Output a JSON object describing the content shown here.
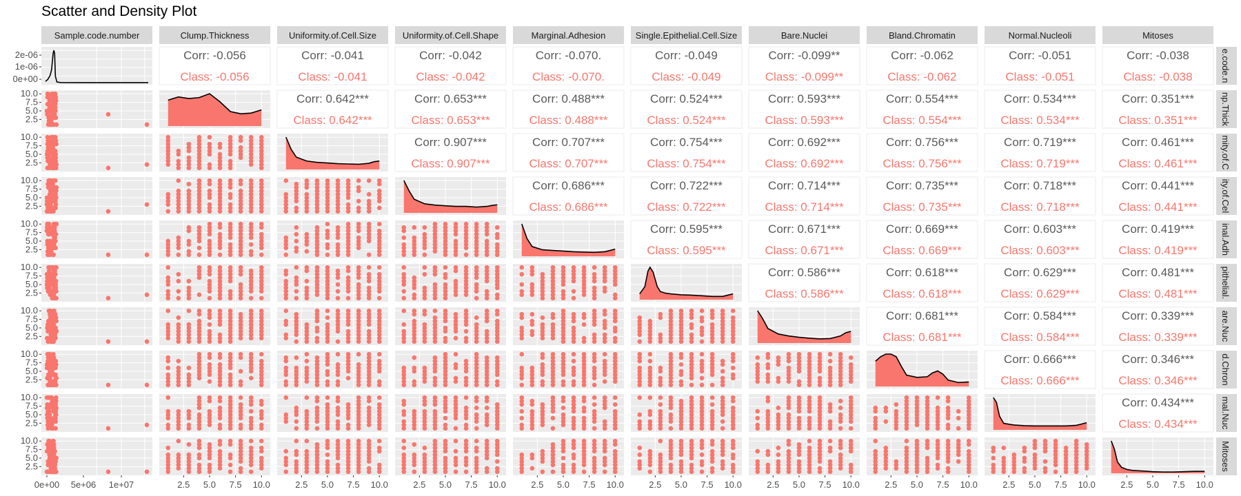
{
  "chart_data": {
    "type": "scatter-matrix",
    "title": "Scatter and Density Plot",
    "variables": [
      "Sample.code.number",
      "Clump.Thickness",
      "Uniformity.of.Cell.Size",
      "Uniformity.of.Cell.Shape",
      "Marginal.Adhesion",
      "Single.Epithelial.Cell.Size",
      "Bare.Nuclei",
      "Bland.Chromatin",
      "Normal.Nucleoli",
      "Mitoses"
    ],
    "row_strip_labels": [
      "e.code.n",
      "np.Thick",
      "mity.of.C",
      "ity.of.Cel",
      "inal.Adh",
      "pithelial.",
      "are.Nuc",
      "d.Chron",
      "mal.Nuc",
      "Mitoses"
    ],
    "y_ticks_first_row": [
      "2e-06",
      "1e-06",
      "0e+00"
    ],
    "y_ticks": [
      "10.0",
      "7.5",
      "5.0",
      "2.5"
    ],
    "x_ticks_first_col": [
      "0e+00",
      "5e+06",
      "1e+07"
    ],
    "x_ticks": [
      "2.5",
      "5.0",
      "7.5",
      "10.0"
    ],
    "correlations": [
      {
        "row": 0,
        "col": 1,
        "corr": "Corr: -0.056",
        "cls": "Class: -0.056"
      },
      {
        "row": 0,
        "col": 2,
        "corr": "Corr: -0.041",
        "cls": "Class: -0.041"
      },
      {
        "row": 0,
        "col": 3,
        "corr": "Corr: -0.042",
        "cls": "Class: -0.042"
      },
      {
        "row": 0,
        "col": 4,
        "corr": "Corr: -0.070.",
        "cls": "Class: -0.070."
      },
      {
        "row": 0,
        "col": 5,
        "corr": "Corr: -0.049",
        "cls": "Class: -0.049"
      },
      {
        "row": 0,
        "col": 6,
        "corr": "Corr: -0.099**",
        "cls": "Class: -0.099**"
      },
      {
        "row": 0,
        "col": 7,
        "corr": "Corr: -0.062",
        "cls": "Class: -0.062"
      },
      {
        "row": 0,
        "col": 8,
        "corr": "Corr: -0.051",
        "cls": "Class: -0.051"
      },
      {
        "row": 0,
        "col": 9,
        "corr": "Corr: -0.038",
        "cls": "Class: -0.038"
      },
      {
        "row": 1,
        "col": 2,
        "corr": "Corr: 0.642***",
        "cls": "Class: 0.642***"
      },
      {
        "row": 1,
        "col": 3,
        "corr": "Corr: 0.653***",
        "cls": "Class: 0.653***"
      },
      {
        "row": 1,
        "col": 4,
        "corr": "Corr: 0.488***",
        "cls": "Class: 0.488***"
      },
      {
        "row": 1,
        "col": 5,
        "corr": "Corr: 0.524***",
        "cls": "Class: 0.524***"
      },
      {
        "row": 1,
        "col": 6,
        "corr": "Corr: 0.593***",
        "cls": "Class: 0.593***"
      },
      {
        "row": 1,
        "col": 7,
        "corr": "Corr: 0.554***",
        "cls": "Class: 0.554***"
      },
      {
        "row": 1,
        "col": 8,
        "corr": "Corr: 0.534***",
        "cls": "Class: 0.534***"
      },
      {
        "row": 1,
        "col": 9,
        "corr": "Corr: 0.351***",
        "cls": "Class: 0.351***"
      },
      {
        "row": 2,
        "col": 3,
        "corr": "Corr: 0.907***",
        "cls": "Class: 0.907***"
      },
      {
        "row": 2,
        "col": 4,
        "corr": "Corr: 0.707***",
        "cls": "Class: 0.707***"
      },
      {
        "row": 2,
        "col": 5,
        "corr": "Corr: 0.754***",
        "cls": "Class: 0.754***"
      },
      {
        "row": 2,
        "col": 6,
        "corr": "Corr: 0.692***",
        "cls": "Class: 0.692***"
      },
      {
        "row": 2,
        "col": 7,
        "corr": "Corr: 0.756***",
        "cls": "Class: 0.756***"
      },
      {
        "row": 2,
        "col": 8,
        "corr": "Corr: 0.719***",
        "cls": "Class: 0.719***"
      },
      {
        "row": 2,
        "col": 9,
        "corr": "Corr: 0.461***",
        "cls": "Class: 0.461***"
      },
      {
        "row": 3,
        "col": 4,
        "corr": "Corr: 0.686***",
        "cls": "Class: 0.686***"
      },
      {
        "row": 3,
        "col": 5,
        "corr": "Corr: 0.722***",
        "cls": "Class: 0.722***"
      },
      {
        "row": 3,
        "col": 6,
        "corr": "Corr: 0.714***",
        "cls": "Class: 0.714***"
      },
      {
        "row": 3,
        "col": 7,
        "corr": "Corr: 0.735***",
        "cls": "Class: 0.735***"
      },
      {
        "row": 3,
        "col": 8,
        "corr": "Corr: 0.718***",
        "cls": "Class: 0.718***"
      },
      {
        "row": 3,
        "col": 9,
        "corr": "Corr: 0.441***",
        "cls": "Class: 0.441***"
      },
      {
        "row": 4,
        "col": 5,
        "corr": "Corr: 0.595***",
        "cls": "Class: 0.595***"
      },
      {
        "row": 4,
        "col": 6,
        "corr": "Corr: 0.671***",
        "cls": "Class: 0.671***"
      },
      {
        "row": 4,
        "col": 7,
        "corr": "Corr: 0.669***",
        "cls": "Class: 0.669***"
      },
      {
        "row": 4,
        "col": 8,
        "corr": "Corr: 0.603***",
        "cls": "Class: 0.603***"
      },
      {
        "row": 4,
        "col": 9,
        "corr": "Corr: 0.419***",
        "cls": "Class: 0.419***"
      },
      {
        "row": 5,
        "col": 6,
        "corr": "Corr: 0.586***",
        "cls": "Class: 0.586***"
      },
      {
        "row": 5,
        "col": 7,
        "corr": "Corr: 0.618***",
        "cls": "Class: 0.618***"
      },
      {
        "row": 5,
        "col": 8,
        "corr": "Corr: 0.629***",
        "cls": "Class: 0.629***"
      },
      {
        "row": 5,
        "col": 9,
        "corr": "Corr: 0.481***",
        "cls": "Class: 0.481***"
      },
      {
        "row": 6,
        "col": 7,
        "corr": "Corr: 0.681***",
        "cls": "Class: 0.681***"
      },
      {
        "row": 6,
        "col": 8,
        "corr": "Corr: 0.584***",
        "cls": "Class: 0.584***"
      },
      {
        "row": 6,
        "col": 9,
        "corr": "Corr: 0.339***",
        "cls": "Class: 0.339***"
      },
      {
        "row": 7,
        "col": 8,
        "corr": "Corr: 0.666***",
        "cls": "Class: 0.666***"
      },
      {
        "row": 7,
        "col": 9,
        "corr": "Corr: 0.346***",
        "cls": "Class: 0.346***"
      },
      {
        "row": 8,
        "col": 9,
        "corr": "Corr: 0.434***",
        "cls": "Class: 0.434***"
      }
    ],
    "densities": [
      {
        "var": "Sample.code.number",
        "x": [
          0,
          300000,
          600000,
          800000,
          1000000,
          1100000,
          1200000,
          1300000,
          1500000,
          2000000,
          5000000,
          10000000,
          13500000
        ],
        "y": [
          0.04,
          0.1,
          0.22,
          0.4,
          0.9,
          1.0,
          0.9,
          0.2,
          0.02,
          0.005,
          0.002,
          0.002,
          0.002
        ]
      },
      {
        "var": "Clump.Thickness",
        "x": [
          1,
          2,
          3,
          4,
          5,
          6,
          7,
          8,
          9,
          10
        ],
        "y": [
          0.8,
          0.9,
          0.85,
          0.88,
          1.0,
          0.75,
          0.45,
          0.38,
          0.4,
          0.5
        ]
      },
      {
        "var": "Uniformity.of.Cell.Size",
        "x": [
          1,
          1.5,
          2,
          3,
          4,
          5,
          6,
          7,
          8,
          9,
          9.5,
          10
        ],
        "y": [
          1.0,
          0.62,
          0.38,
          0.26,
          0.22,
          0.2,
          0.18,
          0.17,
          0.16,
          0.19,
          0.24,
          0.26
        ]
      },
      {
        "var": "Uniformity.of.Cell.Shape",
        "x": [
          1,
          1.5,
          2,
          3,
          4,
          5,
          6,
          7,
          8,
          9,
          9.5,
          10
        ],
        "y": [
          1.0,
          0.68,
          0.42,
          0.28,
          0.24,
          0.22,
          0.2,
          0.2,
          0.18,
          0.2,
          0.23,
          0.25
        ]
      },
      {
        "var": "Marginal.Adhesion",
        "x": [
          1,
          1.5,
          2,
          3,
          4,
          5,
          6,
          7,
          8,
          9,
          9.5,
          10
        ],
        "y": [
          1.0,
          0.55,
          0.3,
          0.2,
          0.18,
          0.16,
          0.14,
          0.13,
          0.12,
          0.14,
          0.18,
          0.22
        ]
      },
      {
        "var": "Single.Epithelial.Cell.Size",
        "x": [
          1,
          1.5,
          1.8,
          2,
          2.3,
          2.7,
          3,
          3.5,
          4,
          5,
          6,
          7,
          8,
          9,
          10
        ],
        "y": [
          0.18,
          0.4,
          0.88,
          1.0,
          0.85,
          0.4,
          0.25,
          0.2,
          0.18,
          0.15,
          0.14,
          0.12,
          0.1,
          0.1,
          0.18
        ]
      },
      {
        "var": "Bare.Nuclei",
        "x": [
          1,
          1.5,
          2,
          3,
          4,
          5,
          6,
          7,
          8,
          9,
          9.5,
          10
        ],
        "y": [
          1.0,
          0.75,
          0.45,
          0.28,
          0.22,
          0.18,
          0.15,
          0.13,
          0.14,
          0.22,
          0.32,
          0.36
        ]
      },
      {
        "var": "Bland.Chromatin",
        "x": [
          1,
          1.5,
          2,
          2.5,
          3,
          3.5,
          4,
          5,
          6,
          6.5,
          7,
          7.5,
          8,
          9,
          10
        ],
        "y": [
          0.78,
          0.92,
          1.0,
          1.0,
          0.92,
          0.62,
          0.35,
          0.28,
          0.3,
          0.42,
          0.48,
          0.38,
          0.2,
          0.12,
          0.14
        ]
      },
      {
        "var": "Normal.Nucleoli",
        "x": [
          1,
          1.3,
          1.6,
          2,
          3,
          4,
          5,
          6,
          7,
          8,
          9,
          9.5,
          10
        ],
        "y": [
          1.0,
          0.85,
          0.42,
          0.2,
          0.15,
          0.13,
          0.12,
          0.12,
          0.12,
          0.12,
          0.14,
          0.18,
          0.22
        ]
      },
      {
        "var": "Mitoses",
        "x": [
          1,
          1.3,
          1.6,
          2,
          2.5,
          3,
          4,
          5,
          6,
          7,
          8,
          9,
          10
        ],
        "y": [
          1.0,
          0.75,
          0.35,
          0.18,
          0.12,
          0.09,
          0.07,
          0.05,
          0.04,
          0.04,
          0.05,
          0.06,
          0.06
        ]
      }
    ],
    "point_color": "#F8766D",
    "corr_color": "#595959",
    "class_color": "#F8766D",
    "density_fill": "#F8766D",
    "panel_bg": "#EBEBEB",
    "strip_bg": "#D9D9D9"
  }
}
